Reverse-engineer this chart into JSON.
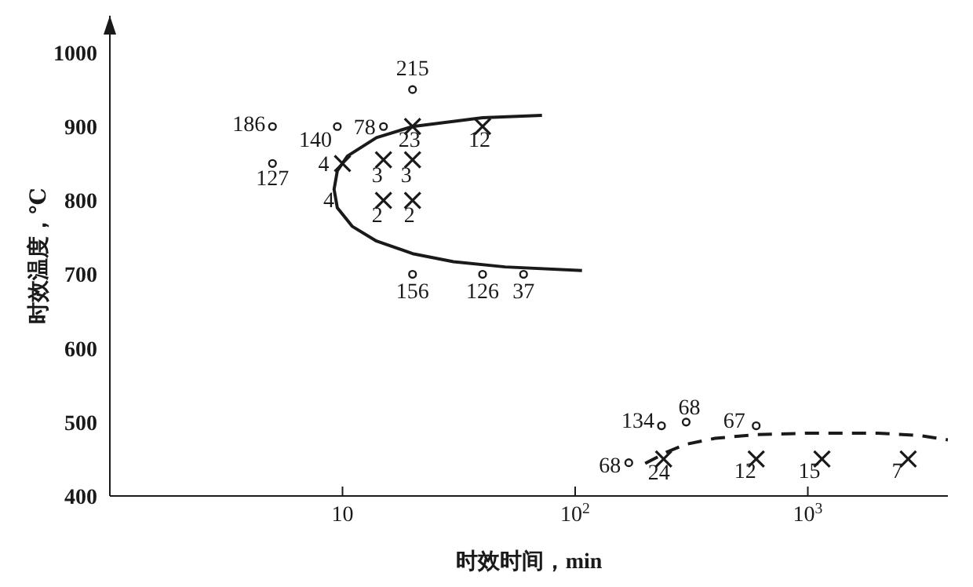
{
  "chart_data": {
    "type": "scatter",
    "xlabel": "时效时间，min",
    "ylabel": "时效温度，℃",
    "log": "x",
    "grid": false,
    "xlim": [
      1,
      4000
    ],
    "xticks": [
      10,
      {
        "value": 100,
        "label": "10$^{2}$"
      },
      {
        "value": 1000,
        "label": "10$^{3}$"
      }
    ],
    "ylim": [
      400,
      1050
    ],
    "yticks": [
      400,
      500,
      600,
      700,
      800,
      900,
      1000
    ],
    "series": [
      {
        "type": "scatter",
        "marker": "circle",
        "color": "#1a1a1a",
        "x": [
          5,
          5,
          9.5,
          15,
          20,
          20,
          40,
          60,
          170,
          235,
          300,
          600
        ],
        "values": [
          900,
          850,
          900,
          900,
          950,
          700,
          700,
          700,
          445,
          495,
          500,
          495
        ]
      },
      {
        "type": "scatter",
        "marker": "cross",
        "color": "#1a1a1a",
        "x": [
          10,
          15,
          20,
          15,
          20,
          20,
          40,
          240,
          600,
          1150,
          2700
        ],
        "values": [
          850,
          855,
          855,
          800,
          800,
          900,
          900,
          450,
          450,
          450,
          450
        ]
      },
      {
        "type": "line",
        "line_style": "solid",
        "color": "#1a1a1a",
        "x": [
          72,
          40,
          20,
          14,
          10.5,
          9.5,
          9.2,
          9.5,
          11,
          14,
          20,
          30,
          50,
          107
        ],
        "values": [
          915,
          912,
          900,
          885,
          860,
          840,
          815,
          790,
          765,
          745,
          728,
          717,
          710,
          705
        ]
      },
      {
        "type": "line",
        "line_style": "dashed",
        "color": "#1a1a1a",
        "x": [
          200,
          250,
          300,
          400,
          600,
          1000,
          2000,
          3000,
          4000
        ],
        "values": [
          444,
          460,
          470,
          478,
          483,
          485,
          485,
          482,
          476
        ]
      }
    ],
    "annotations": [
      {
        "text": "186",
        "x": 5,
        "y": 900
      },
      {
        "text": "127",
        "x": 5,
        "y": 850
      },
      {
        "text": "140",
        "x": 9.5,
        "y": 900
      },
      {
        "text": "78",
        "x": 15,
        "y": 900
      },
      {
        "text": "215",
        "x": 20,
        "y": 950
      },
      {
        "text": "156",
        "x": 20,
        "y": 700
      },
      {
        "text": "126",
        "x": 40,
        "y": 700
      },
      {
        "text": "37",
        "x": 60,
        "y": 700
      },
      {
        "text": "68",
        "x": 170,
        "y": 445
      },
      {
        "text": "134",
        "x": 235,
        "y": 495
      },
      {
        "text": "68",
        "x": 300,
        "y": 500
      },
      {
        "text": "67",
        "x": 600,
        "y": 495
      },
      {
        "text": "4",
        "x": 10,
        "y": 850
      },
      {
        "text": "3",
        "x": 15,
        "y": 855
      },
      {
        "text": "3",
        "x": 20,
        "y": 855
      },
      {
        "text": "2",
        "x": 15,
        "y": 800
      },
      {
        "text": "2",
        "x": 20,
        "y": 800
      },
      {
        "text": "23",
        "x": 20,
        "y": 900
      },
      {
        "text": "12",
        "x": 40,
        "y": 900
      },
      {
        "text": "24",
        "x": 240,
        "y": 450
      },
      {
        "text": "12",
        "x": 600,
        "y": 450
      },
      {
        "text": "15",
        "x": 1150,
        "y": 450
      },
      {
        "text": "7",
        "x": 2700,
        "y": 450
      },
      "4"
    ]
  }
}
